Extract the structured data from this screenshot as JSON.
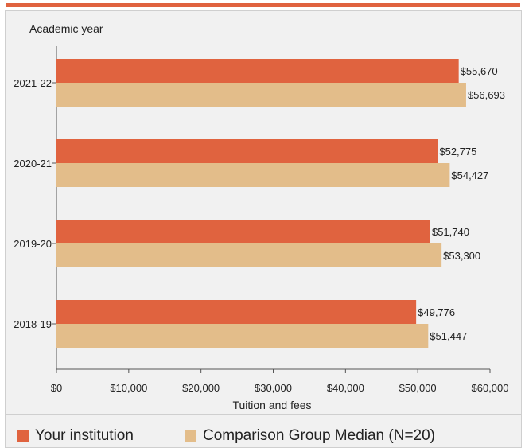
{
  "chart_data": {
    "type": "bar",
    "orientation": "horizontal",
    "ylabel": "Academic year",
    "xlabel": "Tuition and fees",
    "categories": [
      "2021-22",
      "2020-21",
      "2019-20",
      "2018-19"
    ],
    "series": [
      {
        "name": "Your institution",
        "color": "#e0633f",
        "values": [
          55670,
          52775,
          51740,
          49776
        ],
        "labels": [
          "$55,670",
          "$52,775",
          "$51,740",
          "$49,776"
        ]
      },
      {
        "name": "Comparison Group Median (N=20)",
        "color": "#e3bd8a",
        "values": [
          56693,
          54427,
          53300,
          51447
        ],
        "labels": [
          "$56,693",
          "$54,427",
          "$53,300",
          "$51,447"
        ]
      }
    ],
    "xlim": [
      0,
      60000
    ],
    "xticks": [
      0,
      10000,
      20000,
      30000,
      40000,
      50000,
      60000
    ],
    "xtick_labels": [
      "$0",
      "$10,000",
      "$20,000",
      "$30,000",
      "$40,000",
      "$50,000",
      "$60,000"
    ],
    "legend_position": "bottom",
    "grid": false
  },
  "colors": {
    "accent": "#e0633f",
    "background": "#f1f1f1"
  }
}
